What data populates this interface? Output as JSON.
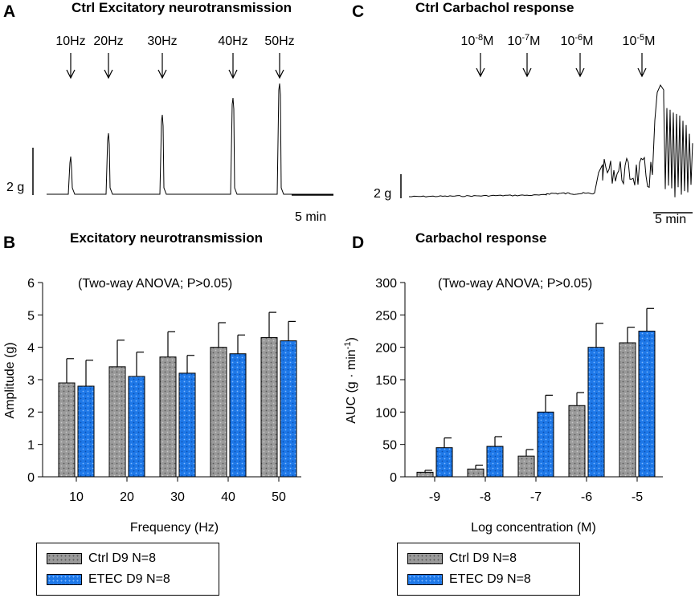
{
  "colors": {
    "ctrl": "#9a9a9a",
    "etec": "#1e78e8",
    "ctrl_dot": "#5a5a5a",
    "etec_dot": "#7fb8ff"
  },
  "panel_a": {
    "letter": "A",
    "title": "Ctrl Excitatory neurotransmission",
    "stimuli": [
      "10Hz",
      "20Hz",
      "30Hz",
      "40Hz",
      "50Hz"
    ],
    "scale_y": "2 g",
    "scale_x": "5 min"
  },
  "panel_c": {
    "letter": "C",
    "title": "Ctrl Carbachol response",
    "doses": [
      {
        "base": "10",
        "exp": "-8",
        "unit": "M"
      },
      {
        "base": "10",
        "exp": "-7",
        "unit": "M"
      },
      {
        "base": "10",
        "exp": "-6",
        "unit": "M"
      },
      {
        "base": "10",
        "exp": "-5",
        "unit": "M"
      }
    ],
    "scale_y": "2 g",
    "scale_x": "5 min"
  },
  "chart_data": [
    {
      "id": "B",
      "letter": "B",
      "type": "bar",
      "title": "Excitatory neurotransmission",
      "annotation": "(Two-way ANOVA; P>0.05)",
      "xlabel": "Frequency (Hz)",
      "ylabel": "Amplitude (g)",
      "ylim": [
        0,
        6
      ],
      "yticks": [
        0,
        1,
        2,
        3,
        4,
        5,
        6
      ],
      "categories": [
        "10",
        "20",
        "30",
        "40",
        "50"
      ],
      "series": [
        {
          "name": "Ctrl D9 N=8",
          "values": [
            2.9,
            3.4,
            3.7,
            4.0,
            4.3
          ],
          "errors": [
            0.75,
            0.82,
            0.78,
            0.76,
            0.78
          ]
        },
        {
          "name": "ETEC D9 N=8",
          "values": [
            2.8,
            3.1,
            3.2,
            3.8,
            4.2
          ],
          "errors": [
            0.8,
            0.75,
            0.55,
            0.58,
            0.6
          ]
        }
      ]
    },
    {
      "id": "D",
      "letter": "D",
      "type": "bar",
      "title": "Carbachol response",
      "annotation": "(Two-way ANOVA; P>0.05)",
      "xlabel": "Log concentration (M)",
      "ylabel_main": "AUC (g · min",
      "ylabel_sup": "-1",
      "ylabel_end": ")",
      "ylim": [
        0,
        300
      ],
      "yticks": [
        0,
        50,
        100,
        150,
        200,
        250,
        300
      ],
      "categories": [
        "-9",
        "-8",
        "-7",
        "-6",
        "-5"
      ],
      "series": [
        {
          "name": "Ctrl D9 N=8",
          "values": [
            7,
            12,
            32,
            110,
            207
          ],
          "errors": [
            3,
            6,
            10,
            20,
            24
          ]
        },
        {
          "name": "ETEC D9 N=8",
          "values": [
            45,
            47,
            100,
            200,
            225
          ],
          "errors": [
            15,
            15,
            26,
            37,
            35
          ]
        }
      ]
    }
  ],
  "legend_b": {
    "items": [
      "Ctrl D9 N=8",
      "ETEC D9 N=8"
    ]
  },
  "legend_d": {
    "items": [
      "Ctrl D9 N=8",
      "ETEC D9 N=8"
    ]
  }
}
